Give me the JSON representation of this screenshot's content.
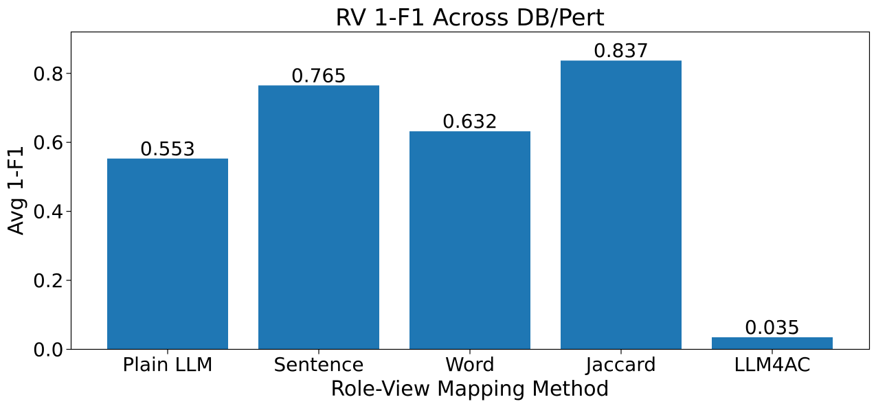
{
  "chart_data": {
    "type": "bar",
    "title": "RV 1-F1 Across DB/Pert",
    "xlabel": "Role-View Mapping Method",
    "ylabel": "Avg 1-F1",
    "categories": [
      "Plain LLM",
      "Sentence",
      "Word",
      "Jaccard",
      "LLM4AC"
    ],
    "values": [
      0.553,
      0.765,
      0.632,
      0.837,
      0.035
    ],
    "data_labels": [
      "0.553",
      "0.765",
      "0.632",
      "0.837",
      "0.035"
    ],
    "ylim": [
      0,
      0.92
    ],
    "yticks": [
      0.0,
      0.2,
      0.4,
      0.6,
      0.8
    ],
    "ytick_labels": [
      "0.0",
      "0.2",
      "0.4",
      "0.6",
      "0.8"
    ],
    "grid": false,
    "legend": "none",
    "bar_color": "#1f77b4"
  }
}
